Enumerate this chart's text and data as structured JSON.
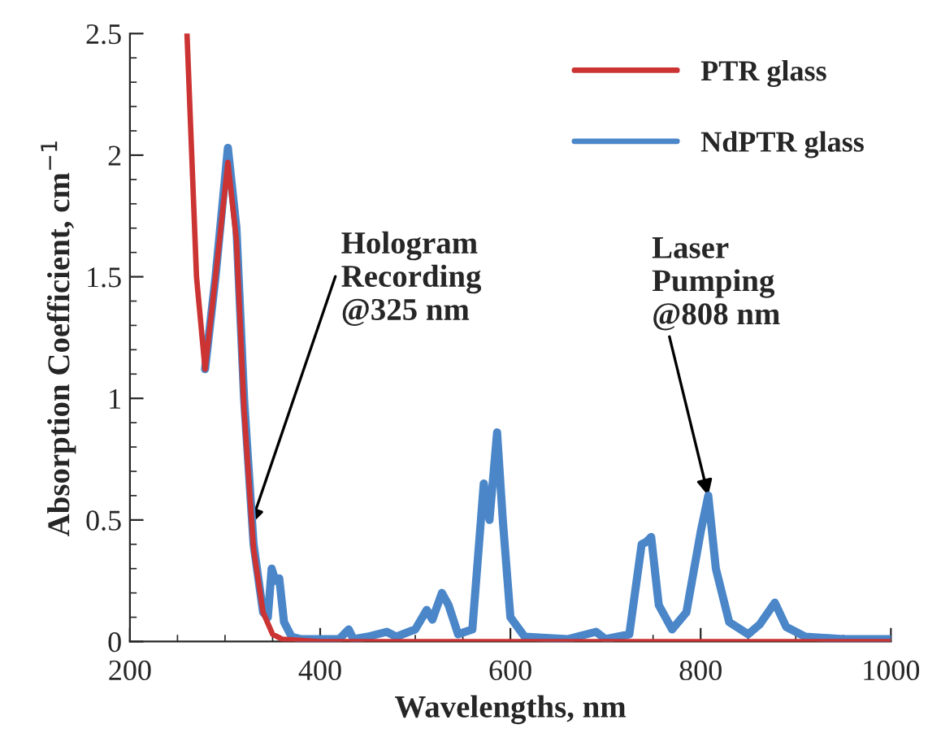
{
  "chart_data": {
    "type": "line",
    "xlabel": "Wavelengths, nm",
    "ylabel": "Absorption Coefficient, cm$^{−1}$",
    "xlim": [
      200,
      1000
    ],
    "xticks": [
      200,
      400,
      600,
      800,
      1000
    ],
    "ylim": [
      0,
      2.5
    ],
    "yticks": [
      0,
      0.5,
      1,
      1.5,
      2,
      2.5
    ],
    "grid": false,
    "legend": "top right",
    "marker": "none",
    "line_style": "solid",
    "series": [
      {
        "name": "PTR glass",
        "color": "#cc3333",
        "x": [
          260,
          270,
          279,
          290,
          303,
          312,
          320,
          330,
          340,
          350,
          360,
          400,
          1000
        ],
        "values": [
          2.5,
          1.5,
          1.12,
          1.5,
          1.97,
          1.65,
          0.95,
          0.38,
          0.12,
          0.03,
          0.01,
          0,
          0
        ]
      },
      {
        "name": "NdPTR glass",
        "color": "#4a86c8",
        "x": [
          279,
          290,
          303,
          312,
          320,
          330,
          340,
          345,
          349,
          353,
          357,
          362,
          370,
          380,
          420,
          430,
          435,
          450,
          460,
          470,
          480,
          500,
          512,
          518,
          528,
          535,
          545,
          560,
          572,
          578,
          586,
          592,
          600,
          615,
          660,
          690,
          700,
          725,
          738,
          743,
          748,
          756,
          770,
          785,
          800,
          808,
          816,
          830,
          850,
          862,
          878,
          890,
          910,
          950,
          1000
        ],
        "values": [
          1.12,
          1.5,
          2.03,
          1.7,
          1.0,
          0.4,
          0.12,
          0.1,
          0.3,
          0.25,
          0.26,
          0.08,
          0.02,
          0.01,
          0.01,
          0.05,
          0.01,
          0.02,
          0.03,
          0.04,
          0.02,
          0.05,
          0.13,
          0.09,
          0.2,
          0.15,
          0.03,
          0.05,
          0.65,
          0.5,
          0.86,
          0.5,
          0.1,
          0.02,
          0.01,
          0.04,
          0.01,
          0.03,
          0.4,
          0.41,
          0.43,
          0.15,
          0.05,
          0.12,
          0.45,
          0.6,
          0.3,
          0.08,
          0.03,
          0.07,
          0.16,
          0.06,
          0.02,
          0.01,
          0.01
        ]
      }
    ],
    "annotations": [
      {
        "text": "Hologram\nRecording\n@325 nm",
        "x": 327,
        "y": 0.48
      },
      {
        "text": "Laser\nPumping\n@808 nm",
        "x": 808,
        "y": 0.6
      }
    ]
  }
}
